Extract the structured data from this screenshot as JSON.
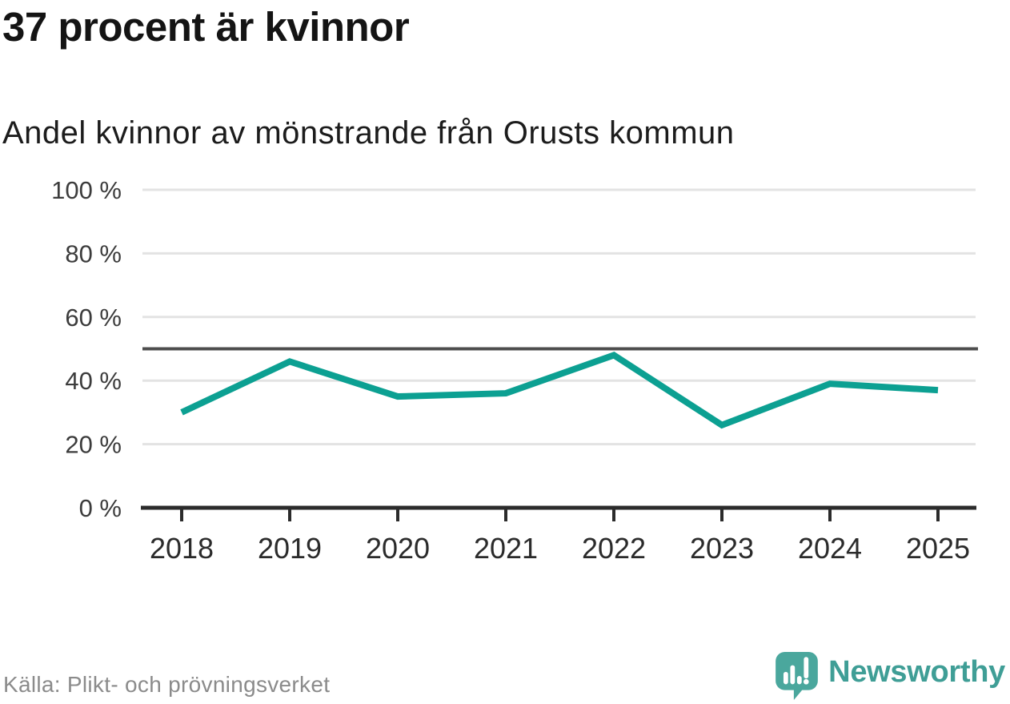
{
  "header": {
    "title": "37 procent är kvinnor",
    "subtitle": "Andel kvinnor av mönstrande från Orusts kommun"
  },
  "chart_data": {
    "type": "line",
    "title": "37 procent är kvinnor",
    "subtitle": "Andel kvinnor av mönstrande från Orusts kommun",
    "categories": [
      "2018",
      "2019",
      "2020",
      "2021",
      "2022",
      "2023",
      "2024",
      "2025"
    ],
    "series": [
      {
        "name": "Andel kvinnor av mönstrande",
        "values": [
          30,
          46,
          35,
          36,
          48,
          26,
          39,
          37
        ],
        "color": "#0ca092"
      }
    ],
    "unit": "%",
    "ylim": [
      0,
      100
    ],
    "yticks": [
      {
        "value": 0,
        "label": "0 %"
      },
      {
        "value": 20,
        "label": "20 %"
      },
      {
        "value": 40,
        "label": "40 %"
      },
      {
        "value": 60,
        "label": "60 %"
      },
      {
        "value": 80,
        "label": "80 %"
      },
      {
        "value": 100,
        "label": "100 %"
      }
    ],
    "reference_line": 50,
    "reference_line_color": "#4d4d4d",
    "grid": true,
    "grid_color": "#e3e3e3",
    "axis_color": "#2b2b2b",
    "tick_label_color": "#3c3c3c",
    "legend": "none"
  },
  "footer": {
    "source": "Källa: Plikt- och prövningsverket",
    "brand": {
      "name": "Newsworthy",
      "color": "#3f9e96",
      "icon": "newsworthy-speech-bubble-bar-chart-icon",
      "icon_color": "#4aa79d"
    }
  }
}
